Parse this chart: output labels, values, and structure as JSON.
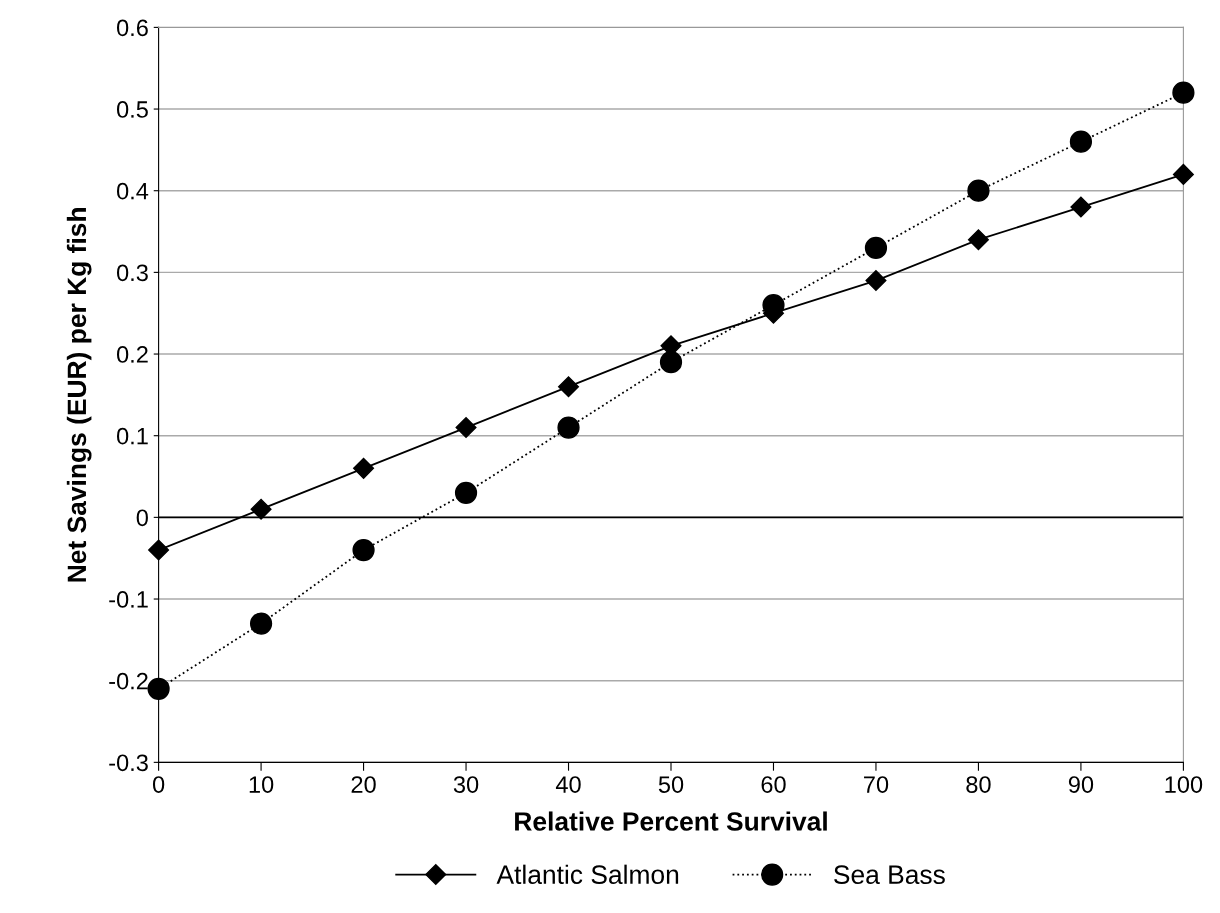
{
  "chart_data": {
    "type": "line",
    "xlabel": "Relative Percent Survival",
    "ylabel": "Net Savings (EUR) per Kg fish",
    "x": [
      0,
      10,
      20,
      30,
      40,
      50,
      60,
      70,
      80,
      90,
      100
    ],
    "series": [
      {
        "name": "Atlantic Salmon",
        "color": "#000000",
        "marker": "diamond",
        "line_style": "solid",
        "values": [
          -0.04,
          0.01,
          0.06,
          0.11,
          0.16,
          0.21,
          0.25,
          0.29,
          0.34,
          0.38,
          0.42
        ]
      },
      {
        "name": "Sea Bass",
        "color": "#000000",
        "marker": "circle",
        "line_style": "dotted",
        "values": [
          -0.21,
          -0.13,
          -0.04,
          0.03,
          0.11,
          0.19,
          0.26,
          0.33,
          0.4,
          0.46,
          0.52
        ]
      }
    ],
    "xlim": [
      0,
      100
    ],
    "xticks": [
      0,
      10,
      20,
      30,
      40,
      50,
      60,
      70,
      80,
      90,
      100
    ],
    "ylim": [
      -0.3,
      0.6
    ],
    "yticks": [
      -0.3,
      -0.2,
      -0.1,
      0,
      0.1,
      0.2,
      0.3,
      0.4,
      0.5,
      0.6
    ],
    "ref_lines": [
      {
        "axis": "y",
        "value": 0,
        "color": "#000000"
      }
    ],
    "grid": "y",
    "legend": "bottom"
  }
}
